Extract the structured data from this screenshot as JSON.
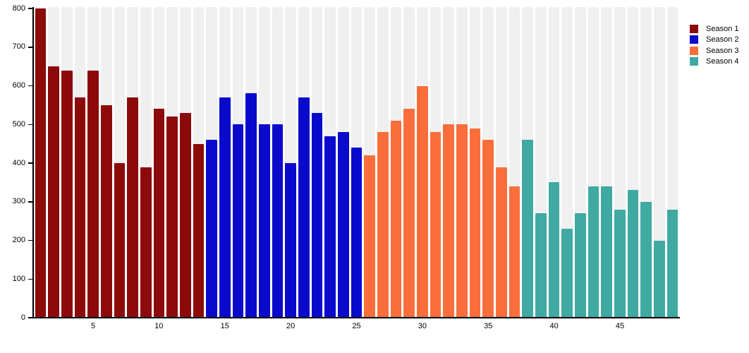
{
  "chart_data": {
    "type": "bar",
    "title": "",
    "xlabel": "",
    "ylabel": "",
    "ylim": [
      0,
      800
    ],
    "yticks": [
      0,
      100,
      200,
      300,
      400,
      500,
      600,
      700,
      800
    ],
    "xticks": [
      5,
      10,
      15,
      20,
      25,
      30,
      35,
      40,
      45
    ],
    "x_range": [
      1,
      49
    ],
    "grid": "full-height light-gray background band behind each bar slot, rounded tops",
    "legend_position": "top-right",
    "series": [
      {
        "name": "Season 1",
        "color": "#8C0A0A",
        "x_start": 1,
        "values": [
          800,
          650,
          640,
          570,
          640,
          550,
          400,
          570,
          390,
          540,
          520,
          530,
          450
        ]
      },
      {
        "name": "Season 2",
        "color": "#0A0ACD",
        "x_start": 14,
        "values": [
          460,
          570,
          500,
          580,
          500,
          500,
          400,
          570,
          530,
          470,
          480,
          440
        ]
      },
      {
        "name": "Season 3",
        "color": "#FA6E3C",
        "x_start": 26,
        "values": [
          420,
          480,
          510,
          540,
          600,
          480,
          500,
          500,
          490,
          460,
          390,
          340
        ]
      },
      {
        "name": "Season 4",
        "color": "#3FA9A2",
        "x_start": 38,
        "values": [
          460,
          270,
          350,
          230,
          270,
          340,
          340,
          280,
          330,
          300,
          200,
          280
        ]
      }
    ],
    "colors": {
      "background_band": "#F0F0F0",
      "figure_background": "#FFFFFF",
      "axis": "#000000",
      "tick_text": "#000000"
    }
  }
}
